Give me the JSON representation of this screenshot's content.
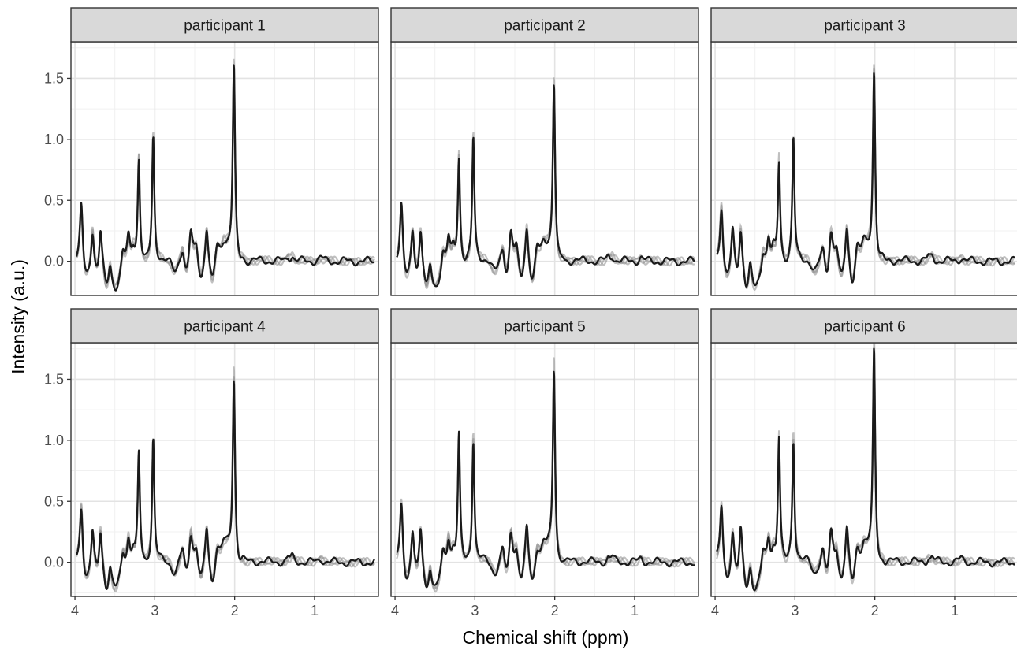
{
  "chart_data": {
    "type": "line",
    "layout": "faceted 2x3 grid, shared axes",
    "xlabel": "Chemical shift (ppm)",
    "ylabel": "Intensity (a.u.)",
    "x_reversed": true,
    "xlim": [
      4.05,
      0.2
    ],
    "ylim": [
      -0.28,
      1.8
    ],
    "x_ticks": [
      4,
      3,
      2,
      1
    ],
    "x_tick_labels": [
      "4",
      "3",
      "2",
      "1"
    ],
    "y_ticks": [
      0.0,
      0.5,
      1.0,
      1.5
    ],
    "y_tick_labels": [
      "0.0",
      "0.5",
      "1.0",
      "1.5"
    ],
    "grid": true,
    "line_color": "#1a1a1a",
    "panel_border_color": "#333333",
    "strip_fill": "#d9d9d9",
    "panels": [
      {
        "label": "participant 1",
        "peaks": [
          {
            "x": 3.92,
            "y": 0.53
          },
          {
            "x": 3.2,
            "y": 0.83
          },
          {
            "x": 3.02,
            "y": 1.0
          },
          {
            "x": 2.01,
            "y": 1.59
          }
        ]
      },
      {
        "label": "participant 2",
        "peaks": [
          {
            "x": 3.92,
            "y": 0.55
          },
          {
            "x": 3.2,
            "y": 0.83
          },
          {
            "x": 3.02,
            "y": 1.0
          },
          {
            "x": 2.01,
            "y": 1.45
          }
        ]
      },
      {
        "label": "participant 3",
        "peaks": [
          {
            "x": 3.92,
            "y": 0.53
          },
          {
            "x": 3.2,
            "y": 0.8
          },
          {
            "x": 3.02,
            "y": 1.0
          },
          {
            "x": 2.01,
            "y": 1.55
          }
        ]
      },
      {
        "label": "participant 4",
        "peaks": [
          {
            "x": 3.92,
            "y": 0.53
          },
          {
            "x": 3.2,
            "y": 0.87
          },
          {
            "x": 3.02,
            "y": 1.0
          },
          {
            "x": 2.01,
            "y": 1.5
          }
        ]
      },
      {
        "label": "participant 5",
        "peaks": [
          {
            "x": 3.92,
            "y": 0.55
          },
          {
            "x": 3.2,
            "y": 1.02
          },
          {
            "x": 3.02,
            "y": 1.0
          },
          {
            "x": 2.01,
            "y": 1.57
          }
        ]
      },
      {
        "label": "participant 6",
        "peaks": [
          {
            "x": 3.92,
            "y": 0.53
          },
          {
            "x": 3.2,
            "y": 1.02
          },
          {
            "x": 3.02,
            "y": 1.0
          },
          {
            "x": 2.01,
            "y": 1.72
          }
        ]
      }
    ]
  }
}
